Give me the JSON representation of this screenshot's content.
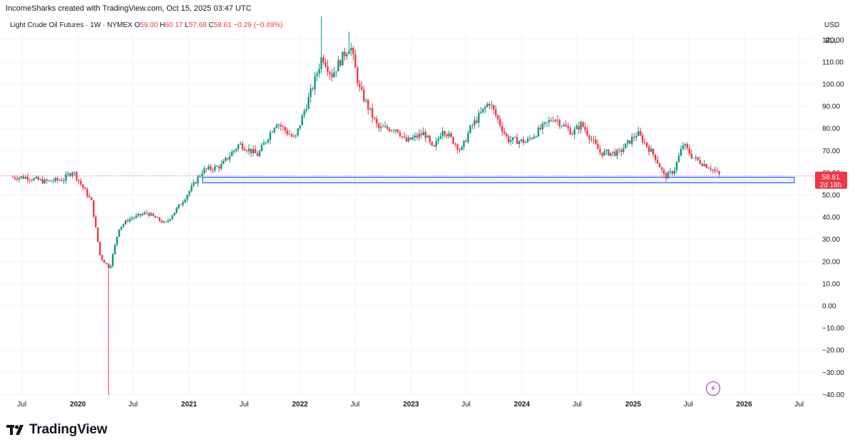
{
  "header": {
    "created": "IncomeSharks created with TradingView.com, Oct 15, 2025 03:47 UTC"
  },
  "legend": {
    "symbol": "Light Crude Oil Futures · 1W · NYMEX",
    "open_key": "O",
    "open": "59.00",
    "high_key": "H",
    "high": "60.17",
    "low_key": "L",
    "low": "57.68",
    "close_key": "C",
    "close": "58.61",
    "change": "−0.29 (−0.49%)"
  },
  "price_axis": {
    "currency": "USD",
    "unit": "BLL",
    "ticks": [
      "120.00",
      "110.00",
      "100.00",
      "90.00",
      "80.00",
      "70.00",
      "60.00",
      "50.00",
      "40.00",
      "30.00",
      "20.00",
      "10.00",
      "0.00",
      "−10.00",
      "−20.00",
      "−30.00",
      "−40.00"
    ],
    "last_price": "58.61",
    "countdown": "2d 18h"
  },
  "time_axis": {
    "labels": [
      "Jul",
      "2020",
      "Jul",
      "2021",
      "Jul",
      "2022",
      "Jul",
      "2023",
      "Jul",
      "2024",
      "Jul",
      "2025",
      "Jul",
      "2026",
      "Jul"
    ]
  },
  "colors": {
    "up": "#089981",
    "down": "#f23645",
    "support_zone": "#2962ff",
    "grid": "#f0f3fa",
    "accent_icon": "#9c27b0"
  },
  "footer": {
    "brand": "TradingView"
  },
  "icons": [
    "tradingview-logo-icon",
    "lightning-icon"
  ],
  "chart_data": {
    "type": "candlestick",
    "title": "Light Crude Oil Futures · 1W · NYMEX",
    "xlabel": "",
    "ylabel": "",
    "ylim": [
      -40,
      130
    ],
    "grid": true,
    "x_range": [
      "2019-06",
      "2026-08"
    ],
    "last_price": 58.61,
    "annotations": [
      {
        "type": "horizontal_zone",
        "x_start": "2021-02",
        "x_end": "2026-06",
        "y_low": 55.5,
        "y_high": 58.0
      },
      {
        "type": "last_price_line",
        "y": 58.61
      }
    ],
    "close_path": [
      [
        "2019-07",
        58
      ],
      [
        "2019-09",
        56
      ],
      [
        "2019-11",
        57
      ],
      [
        "2019-12",
        61
      ],
      [
        "2020-01",
        54
      ],
      [
        "2020-02",
        47
      ],
      [
        "2020-03",
        22
      ],
      [
        "2020-04",
        17
      ],
      [
        "2020-05",
        35
      ],
      [
        "2020-06",
        39
      ],
      [
        "2020-08",
        42
      ],
      [
        "2020-10",
        37
      ],
      [
        "2020-12",
        48
      ],
      [
        "2021-02",
        61
      ],
      [
        "2021-04",
        63
      ],
      [
        "2021-06",
        73
      ],
      [
        "2021-08",
        68
      ],
      [
        "2021-10",
        83
      ],
      [
        "2021-12",
        75
      ],
      [
        "2022-01",
        88
      ],
      [
        "2022-02",
        100
      ],
      [
        "2022-03",
        113
      ],
      [
        "2022-04",
        104
      ],
      [
        "2022-06",
        118
      ],
      [
        "2022-07",
        98
      ],
      [
        "2022-09",
        80
      ],
      [
        "2022-11",
        80
      ],
      [
        "2022-12",
        74
      ],
      [
        "2023-02",
        78
      ],
      [
        "2023-03",
        70
      ],
      [
        "2023-04",
        80
      ],
      [
        "2023-06",
        70
      ],
      [
        "2023-07",
        80
      ],
      [
        "2023-09",
        92
      ],
      [
        "2023-11",
        75
      ],
      [
        "2024-01",
        74
      ],
      [
        "2024-04",
        85
      ],
      [
        "2024-06",
        78
      ],
      [
        "2024-07",
        82
      ],
      [
        "2024-09",
        69
      ],
      [
        "2024-11",
        69
      ],
      [
        "2025-01",
        78
      ],
      [
        "2025-03",
        67
      ],
      [
        "2025-04",
        58
      ],
      [
        "2025-05",
        61
      ],
      [
        "2025-06",
        73
      ],
      [
        "2025-07",
        67
      ],
      [
        "2025-09",
        62
      ],
      [
        "2025-10",
        58.61
      ]
    ],
    "extremes": [
      {
        "date": "2020-04",
        "low": -40.3
      },
      {
        "date": "2022-03",
        "high": 130.5
      },
      {
        "date": "2022-06",
        "high": 123.7
      }
    ]
  }
}
